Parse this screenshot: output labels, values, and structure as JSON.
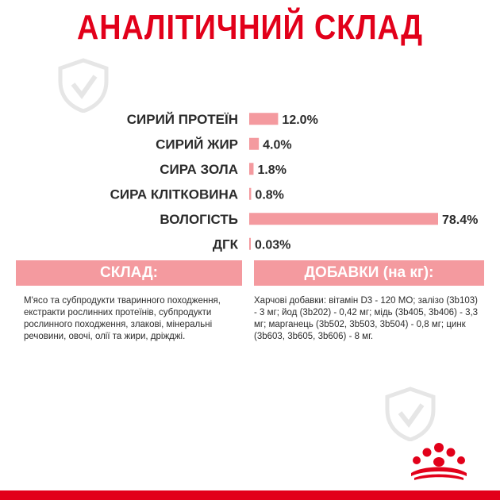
{
  "title": "АНАЛІТИЧНИЙ СКЛАД",
  "colors": {
    "brand_red": "#e2001a",
    "bar_pink": "#f49a9f",
    "text": "#2b2b2b"
  },
  "chart_data": {
    "type": "bar",
    "orientation": "horizontal",
    "categories": [
      "СИРИЙ ПРОТЕЇН",
      "СИРИЙ ЖИР",
      "СИРА ЗОЛА",
      "СИРА КЛІТКОВИНА",
      "ВОЛОГІСТЬ",
      "ДГК"
    ],
    "values": [
      12.0,
      4.0,
      1.8,
      0.8,
      78.4,
      0.03
    ],
    "value_labels": [
      "12.0%",
      "4.0%",
      "1.8%",
      "0.8%",
      "78.4%",
      "0.03%"
    ],
    "xlim": [
      0,
      78.4
    ],
    "grid": false
  },
  "sections": {
    "composition": {
      "heading": "СКЛАД:",
      "text": "М'ясо та субпродукти тваринного походження, екстракти рослинних протеїнів, субпродукти рослинного походження, злакові, мінеральні речовини, овочі, олії та жири, дріжджі."
    },
    "additives": {
      "heading": "ДОБАВКИ (на кг):",
      "text": "Харчові добавки: вітамін D3 - 120 МО; залізо (3b103) - 3 мг; йод (3b202) - 0,42 мг; мідь (3b405, 3b406) - 3,3 мг; марганець (3b502, 3b503, 3b504) - 0,8 мг; цинк (3b603, 3b605, 3b606) - 8 мг."
    }
  },
  "icons": {
    "watermark": "shield-tick-icon",
    "logo": "royal-canin-crown-icon"
  }
}
